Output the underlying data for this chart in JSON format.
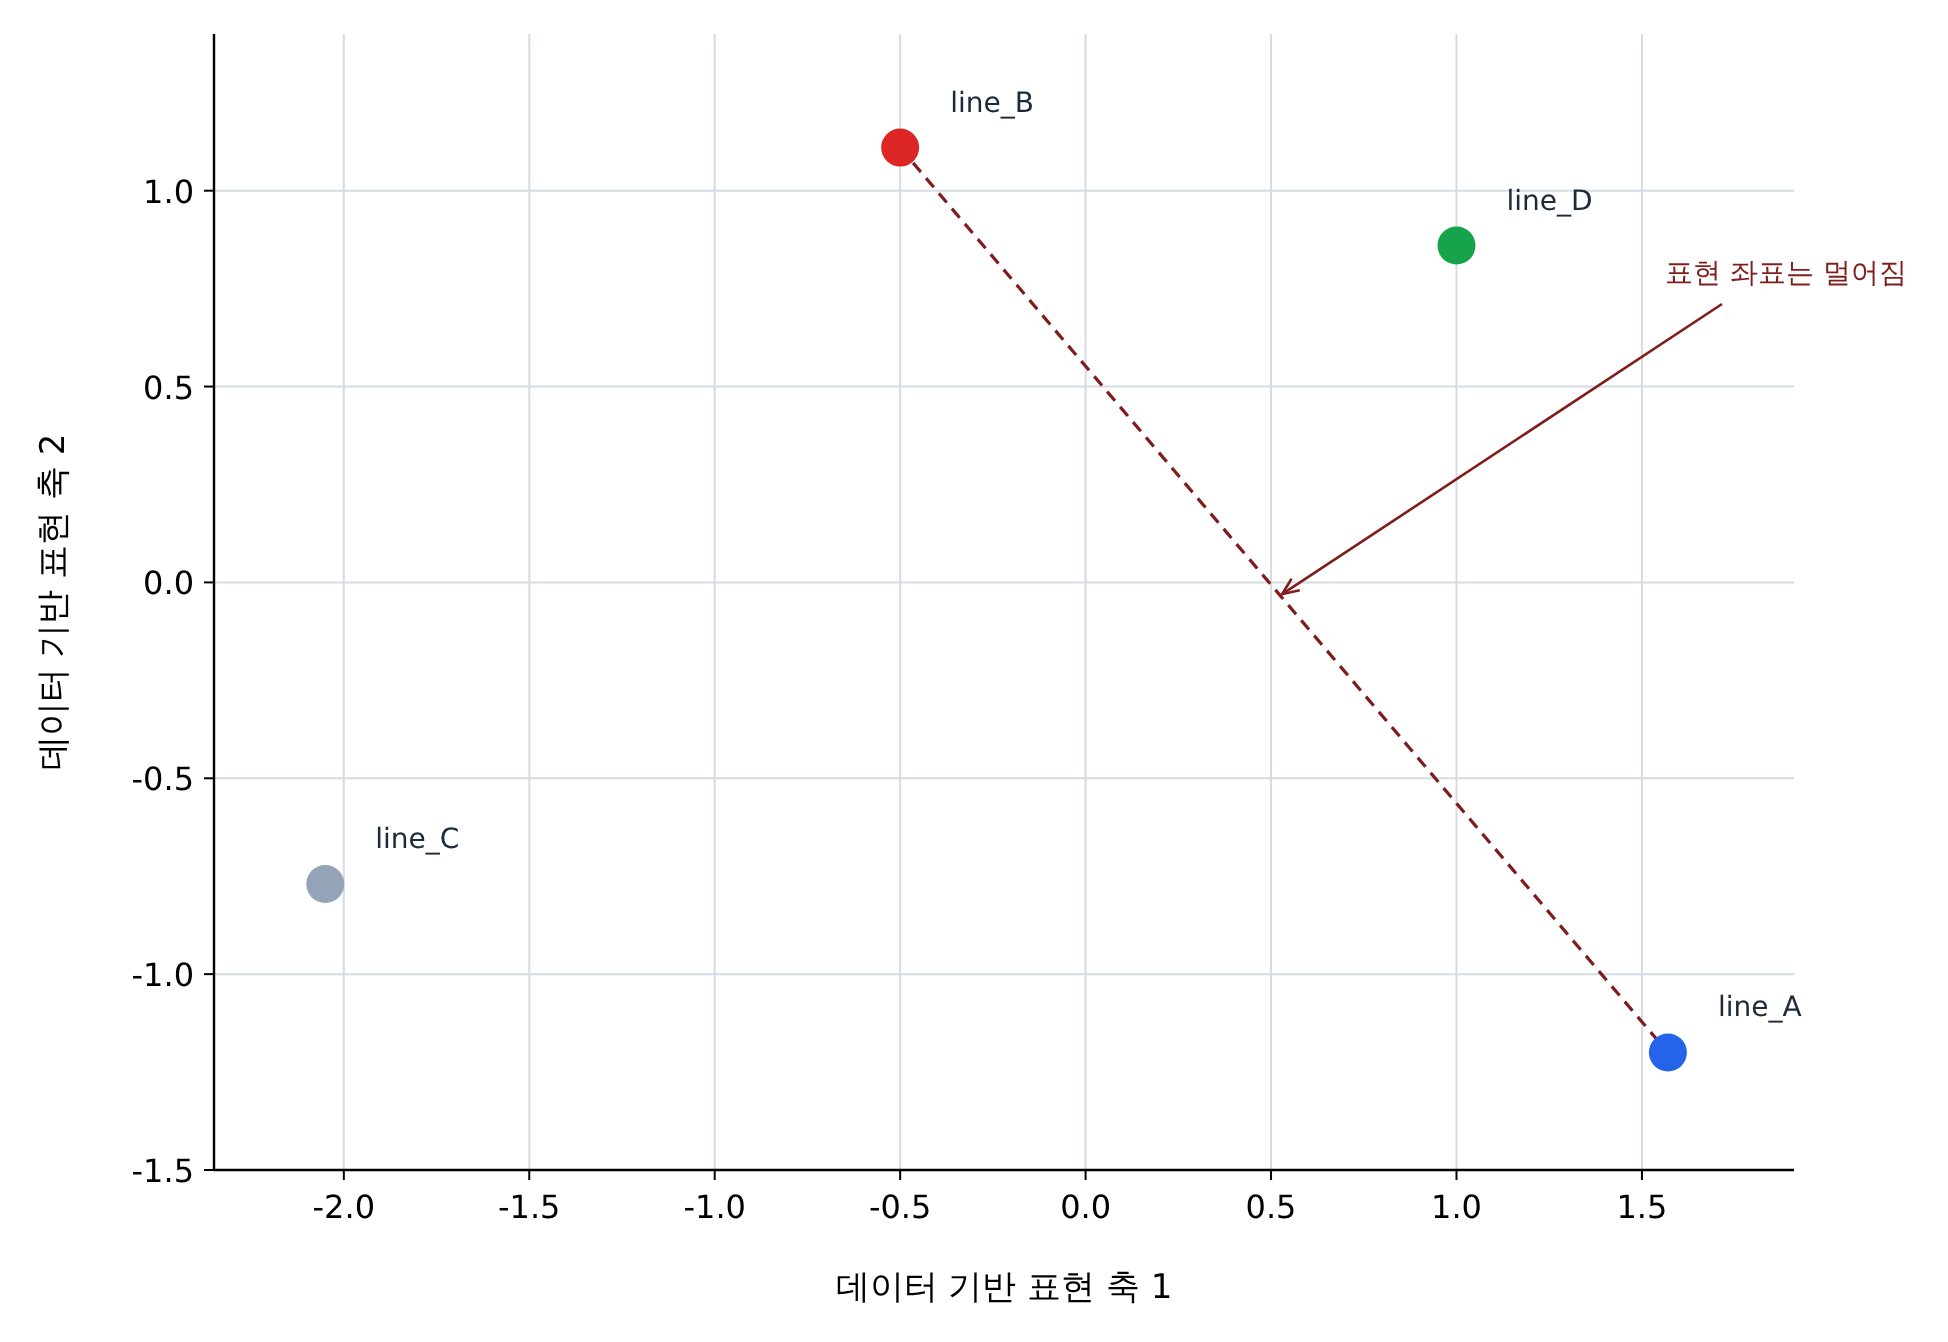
{
  "chart_data": {
    "type": "scatter",
    "xlabel": "데이터 기반 표현 축 1",
    "ylabel": "데이터 기반 표현 축 2",
    "xlim": [
      -2.35,
      1.91
    ],
    "ylim": [
      -1.5,
      1.4
    ],
    "xticks": [
      {
        "value": -2,
        "label": "-2.0"
      },
      {
        "value": -1.5,
        "label": "-1.5"
      },
      {
        "value": -1,
        "label": "-1.0"
      },
      {
        "value": -0.5,
        "label": "-0.5"
      },
      {
        "value": 0,
        "label": "0.0"
      },
      {
        "value": 0.5,
        "label": "0.5"
      },
      {
        "value": 1,
        "label": "1.0"
      },
      {
        "value": 1.5,
        "label": "1.5"
      }
    ],
    "yticks": [
      {
        "value": -1.5,
        "label": "-1.5"
      },
      {
        "value": -1,
        "label": "-1.0"
      },
      {
        "value": -0.5,
        "label": "-0.5"
      },
      {
        "value": 0,
        "label": "0.0"
      },
      {
        "value": 0.5,
        "label": "0.5"
      },
      {
        "value": 1,
        "label": "1.0"
      }
    ],
    "grid": true,
    "series": [
      {
        "type": "line",
        "x": [
          -0.5,
          1.57
        ],
        "values": [
          1.11,
          -1.2
        ],
        "color": "#7f1d1d",
        "line_style": "dashed"
      },
      {
        "name": "line_A",
        "x": [
          1.57
        ],
        "values": [
          -1.2
        ],
        "color": "#2563eb",
        "marker": "circle"
      },
      {
        "name": "line_B",
        "x": [
          -0.5
        ],
        "values": [
          1.11
        ],
        "color": "#dc2626",
        "marker": "circle"
      },
      {
        "name": "line_C",
        "x": [
          -2.05
        ],
        "values": [
          -0.77
        ],
        "color": "#94a3b8",
        "marker": "circle"
      },
      {
        "name": "line_D",
        "x": [
          1.0
        ],
        "values": [
          0.86
        ],
        "color": "#16a34a",
        "marker": "circle"
      }
    ],
    "annotations": [
      {
        "text": "표현 좌표는 멀어짐",
        "x": 0.53,
        "y": -0.03
      }
    ]
  }
}
